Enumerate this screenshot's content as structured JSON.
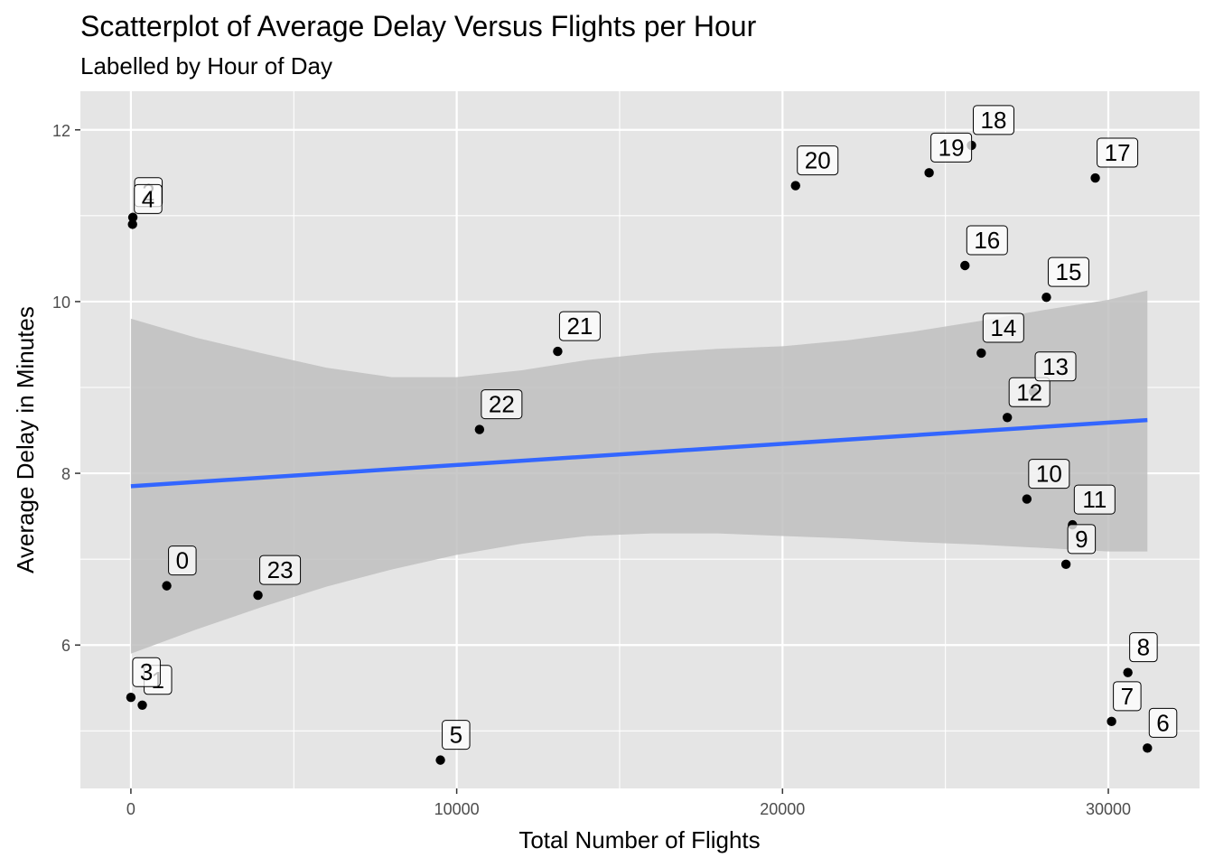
{
  "chart_data": {
    "type": "scatter",
    "title": "Scatterplot of Average Delay Versus Flights per Hour",
    "subtitle": "Labelled by Hour of Day",
    "xlabel": "Total Number of Flights",
    "ylabel": "Average Delay in Minutes",
    "xlim": [
      -1550,
      32800
    ],
    "ylim": [
      4.33,
      12.45
    ],
    "x_ticks": [
      0,
      10000,
      20000,
      30000
    ],
    "x_tick_labels": [
      "0",
      "10000",
      "20000",
      "30000"
    ],
    "y_ticks": [
      6,
      8,
      10,
      12
    ],
    "y_tick_labels": [
      "6",
      "8",
      "10",
      "12"
    ],
    "grid": true,
    "points": [
      {
        "label": "0",
        "x": 1100,
        "y": 6.69
      },
      {
        "label": "1",
        "x": 350,
        "y": 5.3
      },
      {
        "label": "2",
        "x": 60,
        "y": 10.98
      },
      {
        "label": "3",
        "x": 0,
        "y": 5.39
      },
      {
        "label": "4",
        "x": 50,
        "y": 10.9
      },
      {
        "label": "5",
        "x": 9500,
        "y": 4.66
      },
      {
        "label": "6",
        "x": 31200,
        "y": 4.8
      },
      {
        "label": "7",
        "x": 30100,
        "y": 5.11
      },
      {
        "label": "8",
        "x": 30600,
        "y": 5.68
      },
      {
        "label": "9",
        "x": 28700,
        "y": 6.94
      },
      {
        "label": "10",
        "x": 27500,
        "y": 7.7
      },
      {
        "label": "11",
        "x": 28900,
        "y": 7.4
      },
      {
        "label": "12",
        "x": 26900,
        "y": 8.65
      },
      {
        "label": "13",
        "x": 27700,
        "y": 8.95
      },
      {
        "label": "14",
        "x": 26100,
        "y": 9.4
      },
      {
        "label": "15",
        "x": 28100,
        "y": 10.05
      },
      {
        "label": "16",
        "x": 25600,
        "y": 10.42
      },
      {
        "label": "17",
        "x": 29600,
        "y": 11.44
      },
      {
        "label": "18",
        "x": 25800,
        "y": 11.82
      },
      {
        "label": "19",
        "x": 24500,
        "y": 11.5
      },
      {
        "label": "20",
        "x": 20400,
        "y": 11.35
      },
      {
        "label": "21",
        "x": 13100,
        "y": 9.42
      },
      {
        "label": "22",
        "x": 10700,
        "y": 8.51
      },
      {
        "label": "23",
        "x": 3900,
        "y": 6.58
      }
    ],
    "trend_line": {
      "method": "lm",
      "color": "#3366FF",
      "x": [
        0,
        31200
      ],
      "y": [
        7.85,
        8.62
      ]
    },
    "confidence_band": {
      "x": [
        0,
        2000,
        4000,
        6000,
        8000,
        10000,
        12000,
        14000,
        16000,
        18000,
        20000,
        22000,
        24000,
        26000,
        28000,
        30000,
        31200
      ],
      "lower": [
        5.9,
        6.18,
        6.44,
        6.68,
        6.88,
        7.05,
        7.18,
        7.27,
        7.3,
        7.3,
        7.27,
        7.24,
        7.2,
        7.17,
        7.13,
        7.09,
        7.09
      ],
      "upper": [
        9.8,
        9.58,
        9.4,
        9.23,
        9.12,
        9.12,
        9.2,
        9.32,
        9.4,
        9.45,
        9.48,
        9.55,
        9.65,
        9.77,
        9.9,
        10.02,
        10.13
      ]
    },
    "colors": {
      "panel": "#e5e5e5",
      "grid": "#ffffff",
      "band": "#c0c0c0",
      "point": "#000000"
    }
  }
}
